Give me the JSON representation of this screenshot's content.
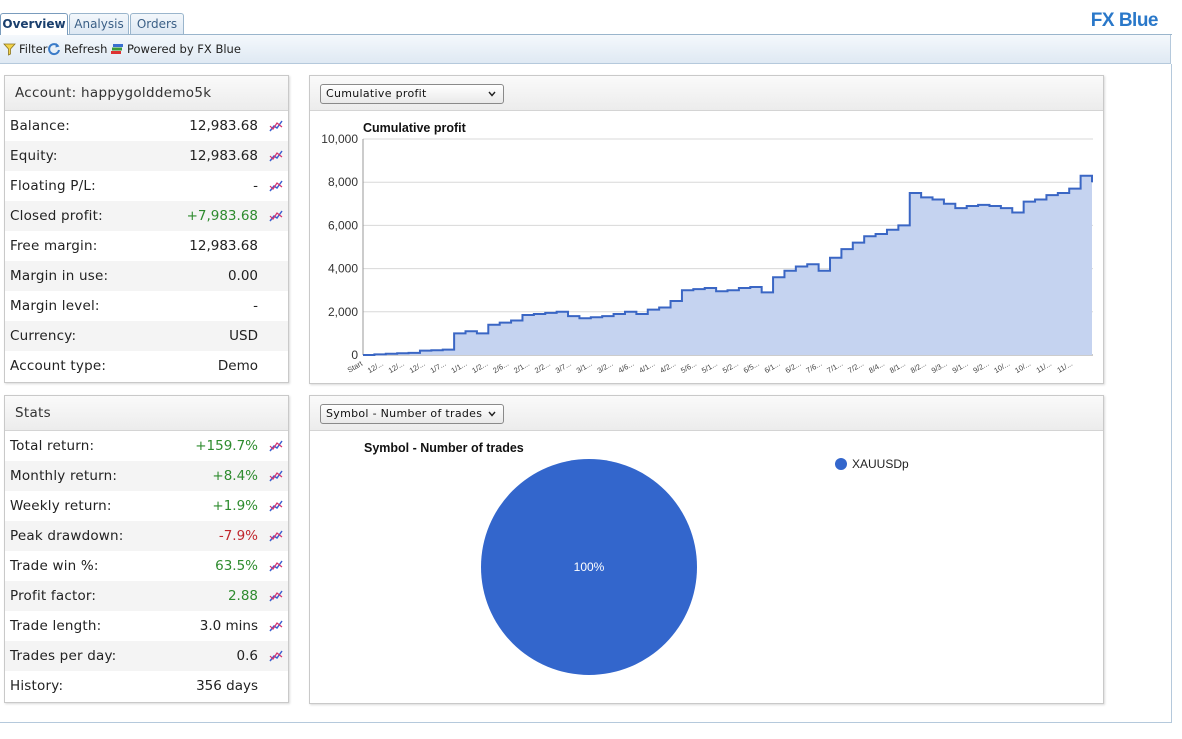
{
  "tabs": [
    {
      "label": "Overview",
      "active": true
    },
    {
      "label": "Analysis",
      "active": false
    },
    {
      "label": "Orders",
      "active": false
    }
  ],
  "brand": "FX Blue",
  "toolbar": {
    "filter": "Filter",
    "refresh": "Refresh",
    "powered": "Powered by FX Blue"
  },
  "account": {
    "title": "Account: happygolddemo5k",
    "rows": [
      {
        "label": "Balance:",
        "value": "12,983.68",
        "tone": "plain",
        "chart_icon": true
      },
      {
        "label": "Equity:",
        "value": "12,983.68",
        "tone": "plain",
        "chart_icon": true
      },
      {
        "label": "Floating P/L:",
        "value": "-",
        "tone": "plain",
        "chart_icon": true
      },
      {
        "label": "Closed profit:",
        "value": "+7,983.68",
        "tone": "pos",
        "chart_icon": true
      },
      {
        "label": "Free margin:",
        "value": "12,983.68",
        "tone": "plain",
        "chart_icon": false
      },
      {
        "label": "Margin in use:",
        "value": "0.00",
        "tone": "plain",
        "chart_icon": false
      },
      {
        "label": "Margin level:",
        "value": "-",
        "tone": "plain",
        "chart_icon": false
      },
      {
        "label": "Currency:",
        "value": "USD",
        "tone": "plain",
        "chart_icon": false
      },
      {
        "label": "Account type:",
        "value": "Demo",
        "tone": "plain",
        "chart_icon": false
      }
    ]
  },
  "stats": {
    "title": "Stats",
    "rows": [
      {
        "label": "Total return:",
        "value": "+159.7%",
        "tone": "pos",
        "chart_icon": true
      },
      {
        "label": "Monthly return:",
        "value": "+8.4%",
        "tone": "pos",
        "chart_icon": true
      },
      {
        "label": "Weekly return:",
        "value": "+1.9%",
        "tone": "pos",
        "chart_icon": true
      },
      {
        "label": "Peak drawdown:",
        "value": "-7.9%",
        "tone": "neg",
        "chart_icon": true
      },
      {
        "label": "Trade win %:",
        "value": "63.5%",
        "tone": "pos",
        "chart_icon": true
      },
      {
        "label": "Profit factor:",
        "value": "2.88",
        "tone": "pos",
        "chart_icon": true
      },
      {
        "label": "Trade length:",
        "value": "3.0 mins",
        "tone": "plain",
        "chart_icon": true
      },
      {
        "label": "Trades per day:",
        "value": "0.6",
        "tone": "plain",
        "chart_icon": true
      },
      {
        "label": "History:",
        "value": "356 days",
        "tone": "plain",
        "chart_icon": false
      }
    ]
  },
  "chart1": {
    "selector": "Cumulative profit",
    "title": "Cumulative profit"
  },
  "chart2": {
    "selector": "Symbol - Number of trades",
    "title": "Symbol - Number of trades"
  },
  "colors": {
    "pos": "#2e8b2e",
    "neg": "#c0272d",
    "area_fill": "#c5d3f0",
    "line": "#3a66c4",
    "pie": "#3366cc"
  },
  "chart_data": [
    {
      "type": "area",
      "title": "Cumulative profit",
      "ylim": [
        0,
        10000
      ],
      "yticks": [
        "10,000",
        "8,000",
        "6,000",
        "4,000",
        "2,000",
        "0"
      ],
      "ytick_values": [
        10000,
        8000,
        6000,
        4000,
        2000,
        0
      ],
      "x_tick_labels": [
        "Start",
        "12/...",
        "12/...",
        "12/...",
        "1/7...",
        "1/1...",
        "1/2...",
        "2/6...",
        "2/1...",
        "2/2...",
        "3/7...",
        "3/1...",
        "3/2...",
        "4/6...",
        "4/1...",
        "4/2...",
        "5/6...",
        "5/1...",
        "5/2...",
        "6/5...",
        "6/1...",
        "6/2...",
        "7/6...",
        "7/1...",
        "7/2...",
        "8/4...",
        "8/1...",
        "8/2...",
        "9/3...",
        "9/1...",
        "9/2...",
        "10/...",
        "10/...",
        "11/...",
        "11/..."
      ],
      "values": [
        0,
        30,
        60,
        80,
        100,
        200,
        220,
        250,
        1000,
        1100,
        1000,
        1400,
        1500,
        1600,
        1850,
        1900,
        1950,
        2000,
        1800,
        1700,
        1750,
        1800,
        1900,
        2000,
        1900,
        2100,
        2200,
        2500,
        3000,
        3050,
        3100,
        2950,
        3000,
        3100,
        3150,
        2900,
        3600,
        3900,
        4100,
        4200,
        3900,
        4500,
        4900,
        5200,
        5500,
        5600,
        5800,
        6000,
        7500,
        7300,
        7200,
        7000,
        6800,
        6900,
        6950,
        6900,
        6800,
        6600,
        7100,
        7200,
        7400,
        7500,
        7700,
        8300,
        8000
      ],
      "grid": true,
      "legend": "none"
    },
    {
      "type": "pie",
      "title": "Symbol - Number of trades",
      "categories": [
        "XAUUSDp"
      ],
      "values": [
        100
      ],
      "slice_labels": [
        "100%"
      ],
      "legend": "top-right"
    }
  ]
}
